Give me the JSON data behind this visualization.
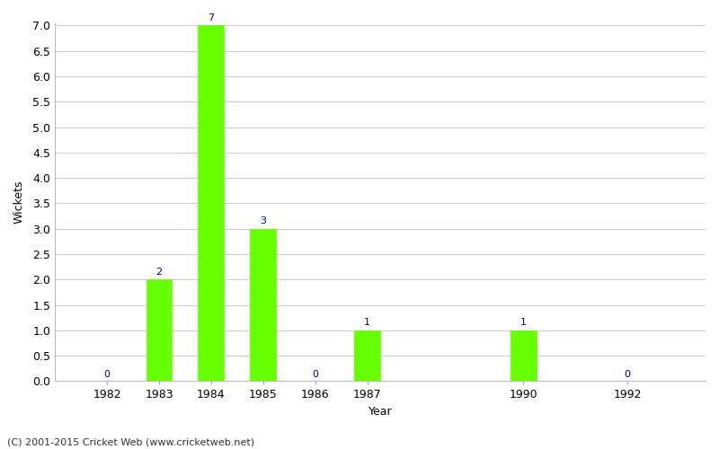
{
  "years": [
    1982,
    1983,
    1984,
    1985,
    1986,
    1987,
    1990,
    1992
  ],
  "wickets": [
    0,
    2,
    7,
    3,
    0,
    1,
    1,
    0
  ],
  "bar_color": "#66ff00",
  "bar_edge_color": "#66ff00",
  "label_color": "#000080",
  "xlabel": "Year",
  "ylabel": "Wickets",
  "ylim": [
    0,
    7.0
  ],
  "yticks": [
    0.0,
    0.5,
    1.0,
    1.5,
    2.0,
    2.5,
    3.0,
    3.5,
    4.0,
    4.5,
    5.0,
    5.5,
    6.0,
    6.5,
    7.0
  ],
  "grid_color": "#cccccc",
  "background_color": "#ffffff",
  "footer": "(C) 2001-2015 Cricket Web (www.cricketweb.net)",
  "bar_width": 0.5,
  "label_fontsize": 8,
  "axis_fontsize": 9,
  "footer_fontsize": 8,
  "xlim": [
    1981.0,
    1993.5
  ]
}
